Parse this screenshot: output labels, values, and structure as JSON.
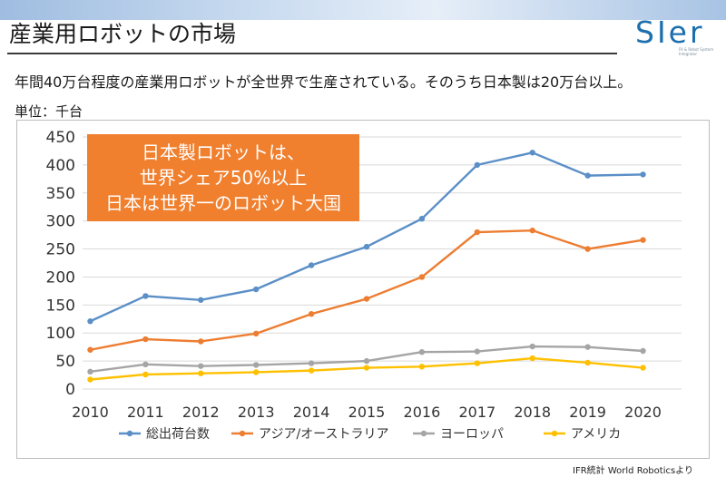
{
  "header": {
    "title": "産業用ロボットの市場",
    "logo_text": "SIer",
    "logo_sub": "FA & Robot System Integrator"
  },
  "subtitle": "年間40万台程度の産業用ロボットが全世界で生産されている。そのうち日本製は20万台以上。",
  "unit_label": "単位：千台",
  "callout": {
    "lines": [
      "日本製ロボットは、",
      "世界シェア50%以上",
      "日本は世界一のロボット大国"
    ]
  },
  "source": "IFR統計 World Roboticsより",
  "chart_data": {
    "type": "line",
    "categories": [
      "2010",
      "2011",
      "2012",
      "2013",
      "2014",
      "2015",
      "2016",
      "2017",
      "2018",
      "2019",
      "2020"
    ],
    "ylim": [
      0,
      450
    ],
    "yticks": [
      0,
      50,
      100,
      150,
      200,
      250,
      300,
      350,
      400,
      450
    ],
    "grid": "horizontal",
    "legend_position": "bottom",
    "series": [
      {
        "name": "総出荷台数",
        "color": "#5b8fc7",
        "values": [
          121,
          166,
          159,
          178,
          221,
          254,
          304,
          400,
          422,
          381,
          383
        ]
      },
      {
        "name": "アジア/オーストラリア",
        "color": "#ed7d31",
        "values": [
          70,
          89,
          85,
          99,
          134,
          161,
          200,
          280,
          283,
          250,
          266
        ]
      },
      {
        "name": "ヨーロッパ",
        "color": "#a5a5a5",
        "values": [
          31,
          44,
          41,
          43,
          46,
          50,
          66,
          67,
          76,
          75,
          68
        ]
      },
      {
        "name": "アメリカ",
        "color": "#ffc000",
        "values": [
          17,
          26,
          28,
          30,
          33,
          38,
          40,
          46,
          55,
          47,
          38
        ]
      }
    ]
  }
}
